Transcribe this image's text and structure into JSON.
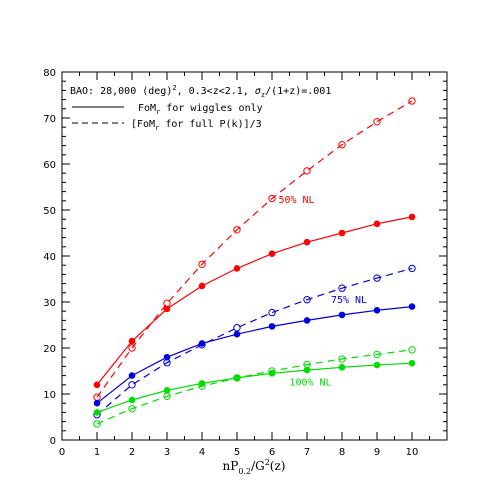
{
  "chart_data": {
    "type": "line",
    "title": "",
    "xlabel_main": "nP",
    "xlabel_sub": "0.2",
    "xlabel_rest": "/G",
    "xlabel_sup": "2",
    "xlabel_end": "(z)",
    "ylabel": "",
    "xlim": [
      0,
      11
    ],
    "ylim": [
      0,
      80
    ],
    "x_ticks": [
      0,
      1,
      2,
      3,
      4,
      5,
      6,
      7,
      8,
      9,
      10
    ],
    "y_ticks": [
      0,
      10,
      20,
      30,
      40,
      50,
      60,
      70,
      80
    ],
    "grid": false,
    "legend": {
      "position": "top-left",
      "header": {
        "a": "BAO: 28,000 (deg)",
        "a_sup": "2",
        "b": ", 0.3<z<2.1, ",
        "sigma": "σ",
        "sigma_sub": "z",
        "c": "/(1+z)=.001"
      },
      "entries": [
        {
          "style": "solid",
          "pre": "FoM",
          "sub": "r",
          "post": " for wiggles only"
        },
        {
          "style": "dashed",
          "pre": "[FoM",
          "sub": "r",
          "post": " for full P(k)]/3"
        }
      ]
    },
    "series": [
      {
        "color": "#ff0000",
        "style": "solid",
        "marker": "filled",
        "x": [
          1,
          2,
          3,
          4,
          5,
          6,
          7,
          8,
          9,
          10
        ],
        "values": [
          12.0,
          21.5,
          28.5,
          33.5,
          37.3,
          40.5,
          43.0,
          45.0,
          47.0,
          48.5
        ]
      },
      {
        "color": "#ff0000",
        "style": "dashed",
        "marker": "open",
        "x": [
          1,
          2,
          3,
          4,
          5,
          6,
          7,
          8,
          9,
          10
        ],
        "values": [
          9.3,
          20.0,
          29.7,
          38.2,
          45.7,
          52.5,
          58.5,
          64.2,
          69.2,
          73.7
        ]
      },
      {
        "color": "#0000dd",
        "style": "solid",
        "marker": "filled",
        "x": [
          1,
          2,
          3,
          4,
          5,
          6,
          7,
          8,
          9,
          10
        ],
        "values": [
          8.0,
          14.0,
          18.0,
          21.0,
          23.0,
          24.7,
          26.0,
          27.2,
          28.2,
          29.0
        ]
      },
      {
        "color": "#0000dd",
        "style": "dashed",
        "marker": "open",
        "x": [
          1,
          2,
          3,
          4,
          5,
          6,
          7,
          8,
          9,
          10
        ],
        "values": [
          5.5,
          12.0,
          16.8,
          20.7,
          24.4,
          27.7,
          30.5,
          33.0,
          35.2,
          37.3
        ]
      },
      {
        "color": "#00dd00",
        "style": "solid",
        "marker": "filled",
        "x": [
          1,
          2,
          3,
          4,
          5,
          6,
          7,
          8,
          9,
          10
        ],
        "values": [
          6.0,
          8.7,
          10.8,
          12.3,
          13.5,
          14.5,
          15.2,
          15.8,
          16.3,
          16.7
        ]
      },
      {
        "color": "#00dd00",
        "style": "dashed",
        "marker": "open",
        "x": [
          1,
          2,
          3,
          4,
          5,
          6,
          7,
          8,
          9,
          10
        ],
        "values": [
          3.5,
          6.8,
          9.5,
          11.7,
          13.5,
          15.0,
          16.4,
          17.6,
          18.6,
          19.6
        ]
      }
    ],
    "annotations": [
      {
        "text": "50% NL",
        "color": "#ff0000",
        "x": 6.7,
        "y": 51.5
      },
      {
        "text": "75% NL",
        "color": "#0000dd",
        "x": 8.2,
        "y": 29.8
      },
      {
        "text": "100% NL",
        "color": "#00dd00",
        "x": 7.1,
        "y": 11.8
      }
    ]
  }
}
